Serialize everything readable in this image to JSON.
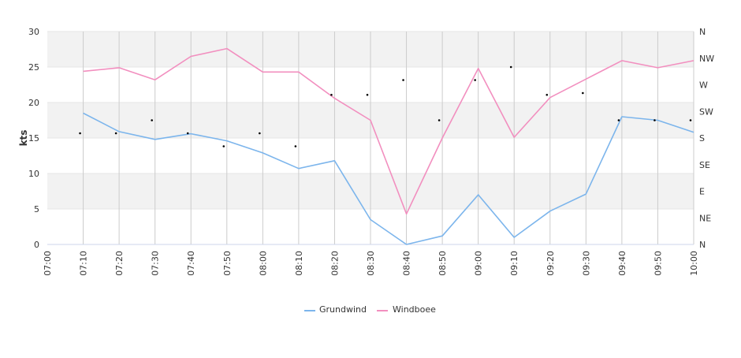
{
  "chart_data": {
    "type": "line",
    "title": "",
    "ylabel": "kts",
    "ylim": [
      0,
      30
    ],
    "y_ticks": [
      "0",
      "5",
      "10",
      "15",
      "20",
      "25",
      "30"
    ],
    "y2_ticks": [
      "N",
      "NE",
      "E",
      "SE",
      "S",
      "SW",
      "W",
      "NW",
      "N"
    ],
    "y2lim": [
      0,
      360
    ],
    "categories": [
      "07:00",
      "07:10",
      "07:20",
      "07:30",
      "07:40",
      "07:50",
      "08:00",
      "08:10",
      "08:20",
      "08:30",
      "08:40",
      "08:50",
      "09:00",
      "09:10",
      "09:20",
      "09:30",
      "09:40",
      "09:50",
      "10:00"
    ],
    "x_tick_labels": [
      "07:00",
      "07:10",
      "07:20",
      "07:30",
      "07:40",
      "07:50",
      "08:00",
      "08:10",
      "08:20",
      "08:30",
      "08:40",
      "08:50",
      "09:00",
      "09:10",
      "09:20",
      "09:30",
      "09:40",
      "09:50",
      "10:00"
    ],
    "grid": true,
    "legend_position": "bottom",
    "series": [
      {
        "name": "Grundwind",
        "color": "#7cb5ec",
        "x": [
          "07:10",
          "07:20",
          "07:30",
          "07:40",
          "07:50",
          "08:00",
          "08:10",
          "08:20",
          "08:30",
          "08:40",
          "08:50",
          "09:00",
          "09:10",
          "09:20",
          "09:30",
          "09:40",
          "09:50",
          "10:00"
        ],
        "values": [
          18.5,
          15.9,
          14.8,
          15.6,
          14.6,
          12.9,
          10.7,
          11.8,
          3.5,
          0.0,
          1.2,
          7.0,
          1.0,
          4.7,
          7.1,
          18.0,
          17.5,
          15.8
        ]
      },
      {
        "name": "Windboee",
        "color": "#f28fbf",
        "x": [
          "07:10",
          "07:20",
          "07:30",
          "07:40",
          "07:50",
          "08:00",
          "08:10",
          "08:20",
          "08:30",
          "08:40",
          "08:50",
          "09:00",
          "09:10",
          "09:20",
          "09:30",
          "09:40",
          "09:50",
          "10:00"
        ],
        "values": [
          24.4,
          24.9,
          23.2,
          26.5,
          27.6,
          24.3,
          24.3,
          20.6,
          17.5,
          4.3,
          15.0,
          24.8,
          15.1,
          20.7,
          23.3,
          25.9,
          24.9,
          25.9
        ]
      }
    ],
    "direction": {
      "name": "Wind direction",
      "unit": "degrees",
      "color": "#000000",
      "x": [
        "07:10",
        "07:20",
        "07:30",
        "07:40",
        "07:50",
        "08:00",
        "08:10",
        "08:20",
        "08:30",
        "08:40",
        "08:50",
        "09:00",
        "09:10",
        "09:20",
        "09:30",
        "09:40",
        "09:50",
        "10:00"
      ],
      "values": [
        188,
        188,
        210,
        188,
        166,
        188,
        166,
        253,
        253,
        278,
        210,
        278,
        300,
        253,
        256,
        210,
        210,
        210
      ]
    }
  },
  "legend": {
    "items": [
      {
        "label": "Grundwind",
        "color": "#7cb5ec"
      },
      {
        "label": "Windboee",
        "color": "#f28fbf"
      }
    ]
  }
}
